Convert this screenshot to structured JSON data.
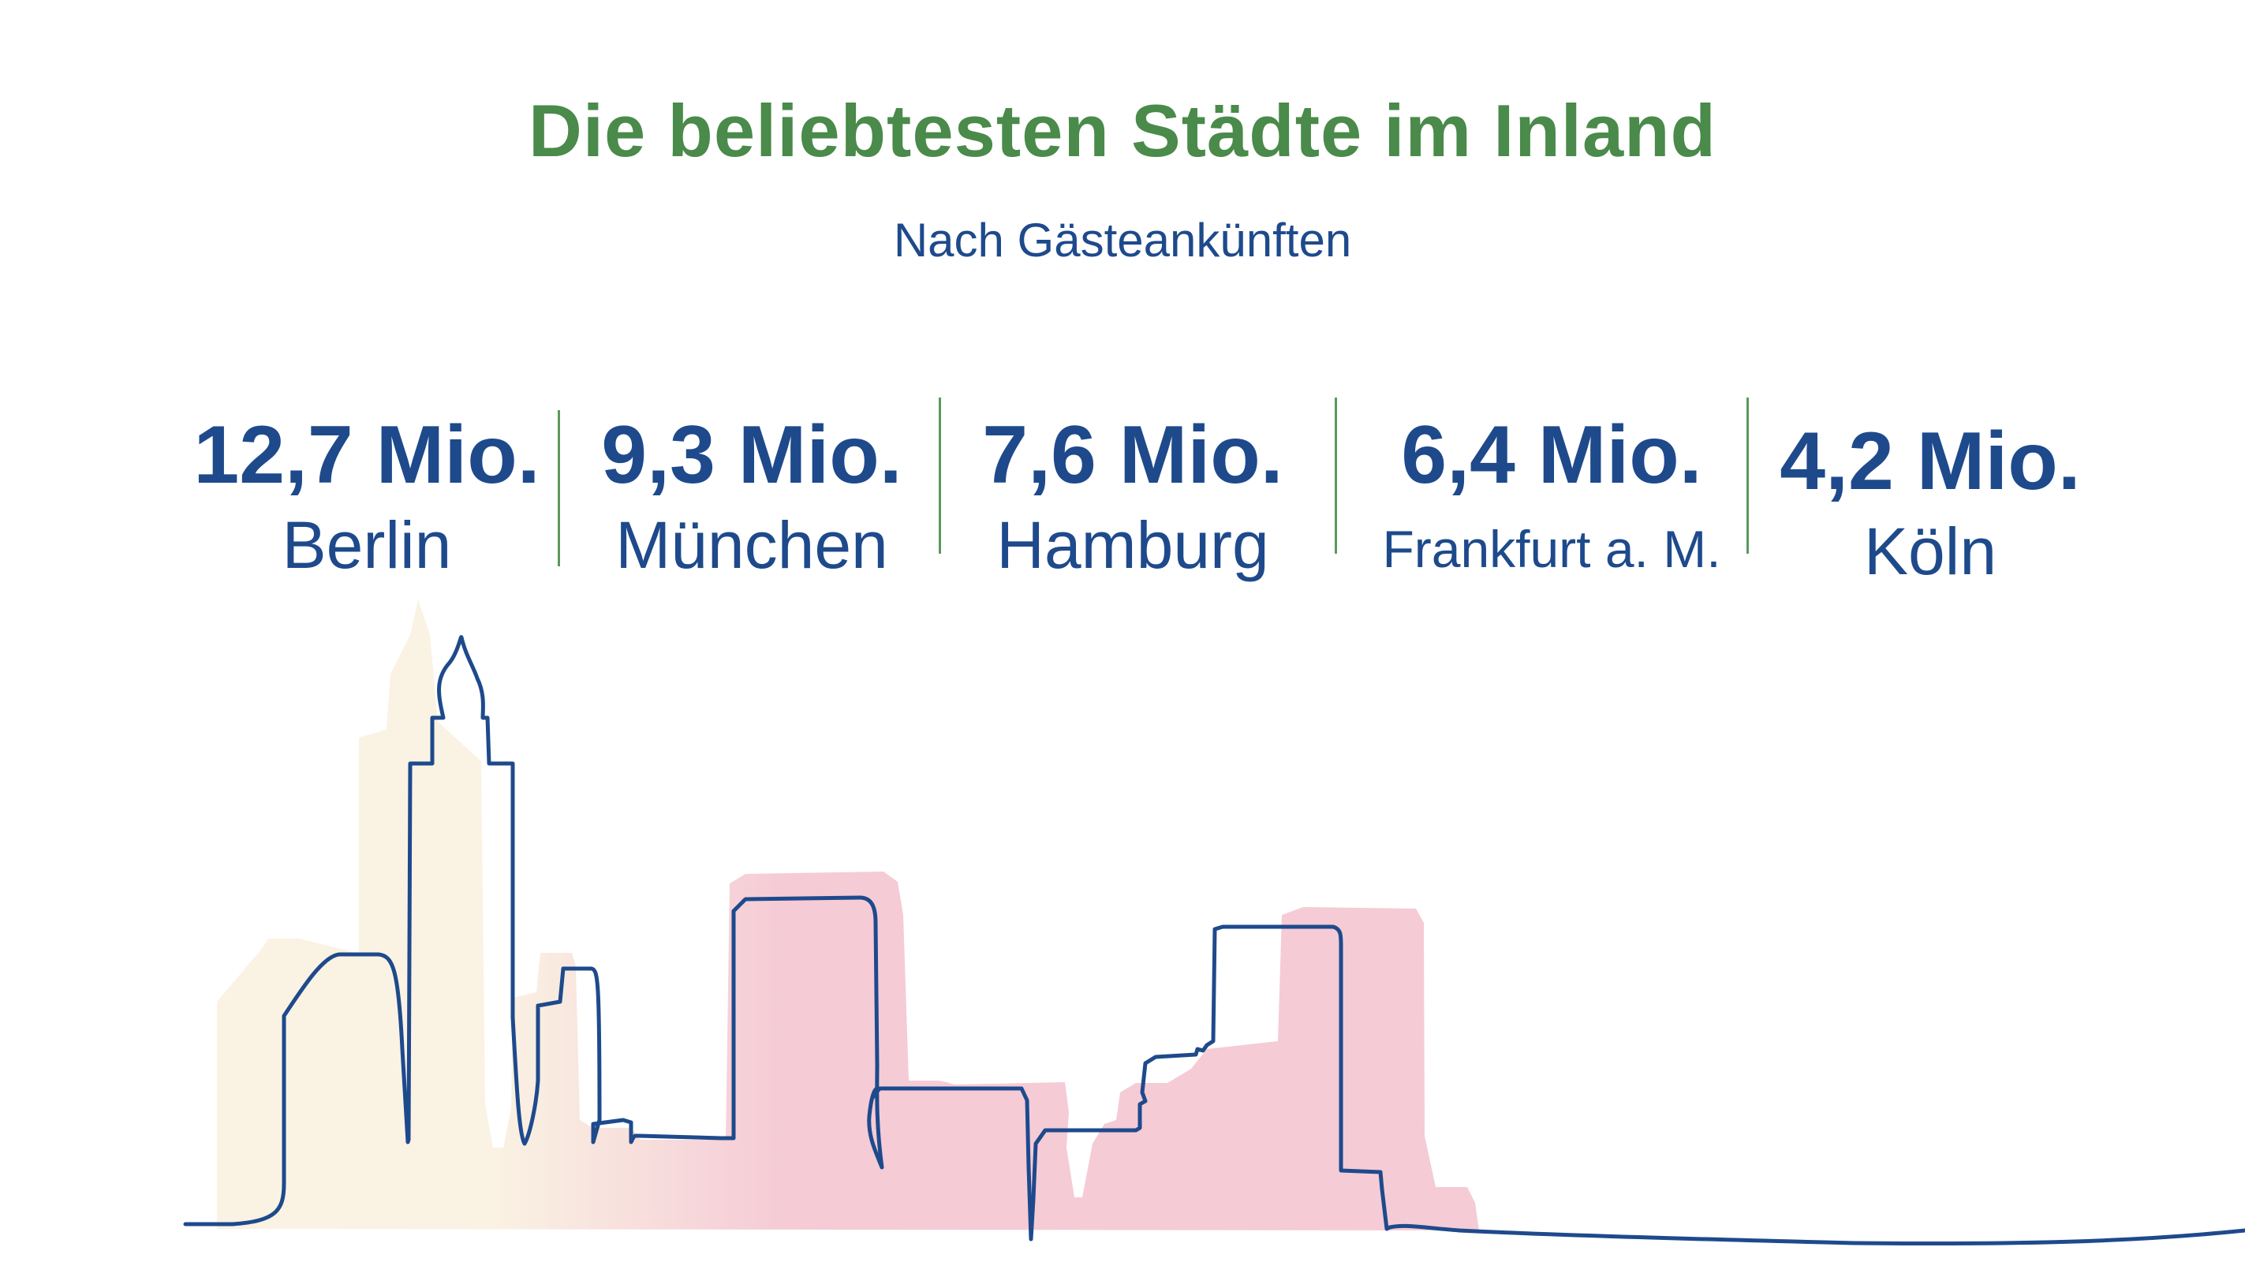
{
  "colors": {
    "title": "#4a8a4a",
    "text": "#1e4a8c",
    "divider": "#5a9a5a",
    "line": "#1e4a8c",
    "fill_light": "#faf2e3",
    "fill_pink": "#f5cbd6"
  },
  "chart_data": {
    "type": "table",
    "title": "Die beliebtesten Städte im Inland",
    "subtitle": "Nach Gästeankünften",
    "categories": [
      "Berlin",
      "München",
      "Hamburg",
      "Frankfurt a. M.",
      "Köln"
    ],
    "values_display": [
      "12,7 Mio.",
      "9,3 Mio.",
      "7,6 Mio.",
      "6,4 Mio.",
      "4,2 Mio."
    ],
    "values": [
      12.7,
      9.3,
      7.6,
      6.4,
      4.2
    ],
    "unit": "Mio."
  }
}
